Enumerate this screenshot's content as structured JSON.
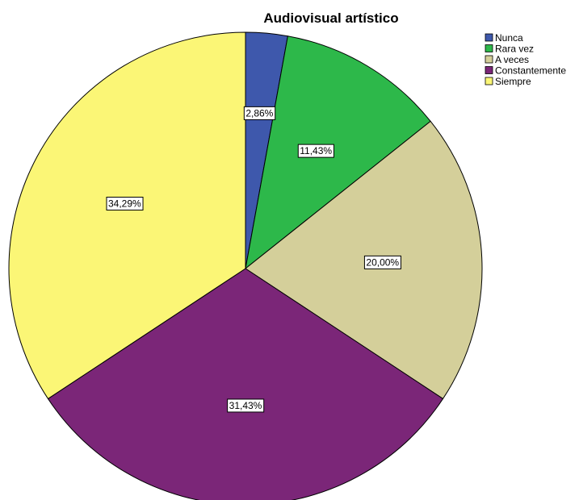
{
  "chart_data": {
    "type": "pie",
    "title": "Audiovisual artístico",
    "categories": [
      "Nunca",
      "Rara vez",
      "A veces",
      "Constantemente",
      "Siempre"
    ],
    "values": [
      2.86,
      11.43,
      20.0,
      31.43,
      34.29
    ],
    "labels": [
      "2,86%",
      "11,43%",
      "20,00%",
      "31,43%",
      "34,29%"
    ],
    "colors": [
      "#3e58ac",
      "#2db84a",
      "#d4cf9a",
      "#7b2678",
      "#fbf676"
    ],
    "start_angle": "12 o'clock",
    "direction": "clockwise",
    "legend_position": "top-right"
  }
}
